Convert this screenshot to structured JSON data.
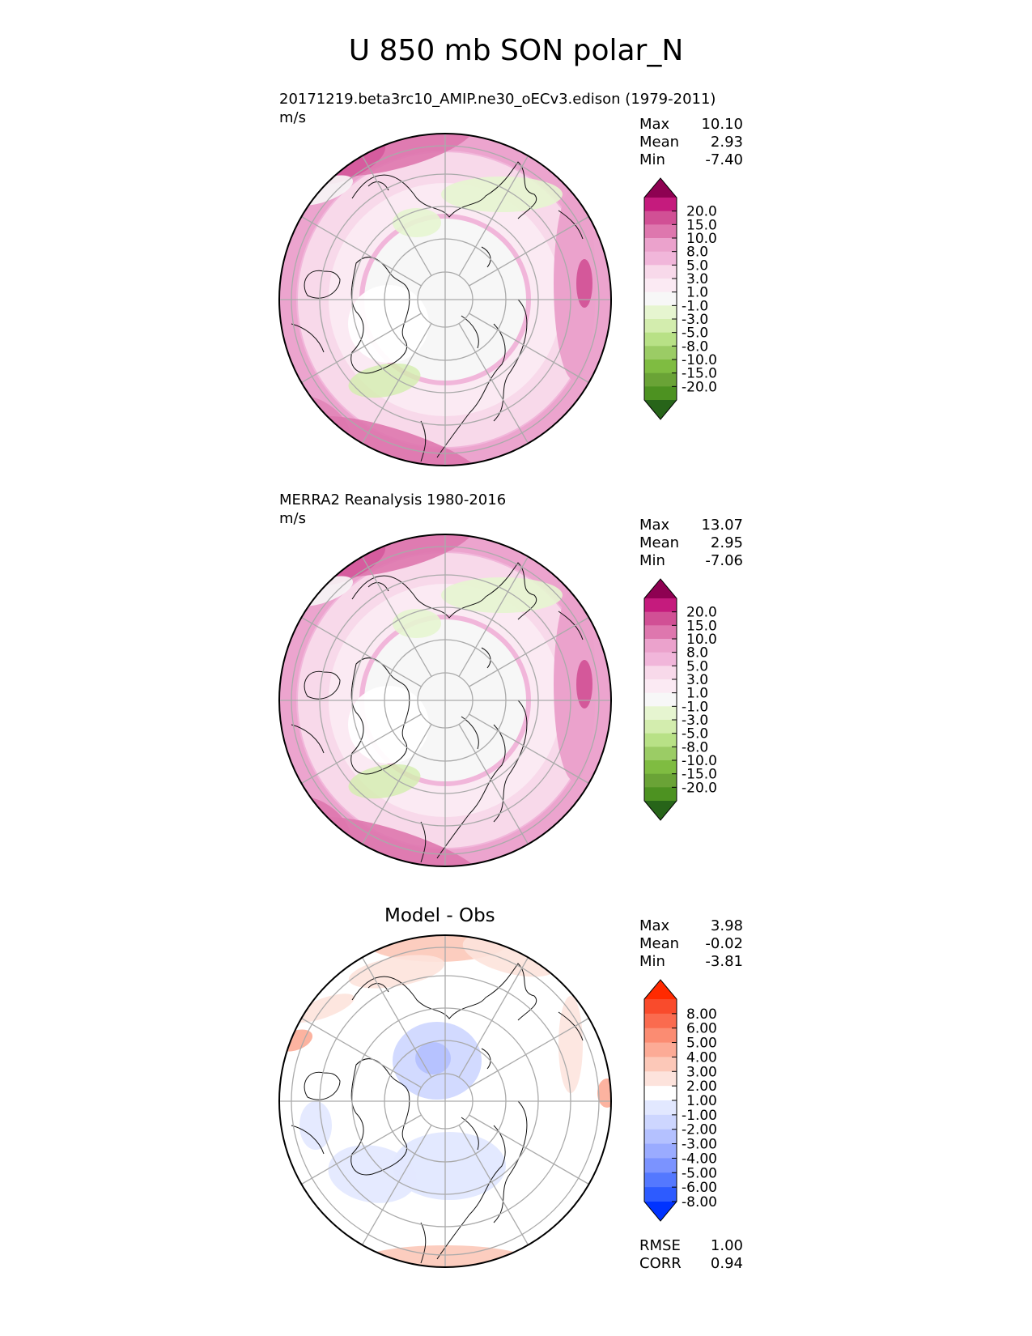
{
  "title": "U 850 mb SON polar_N",
  "colors": {
    "seq_levels": [
      "#276419",
      "#4d9221",
      "#6aa336",
      "#7fbc41",
      "#9bcc65",
      "#b8e186",
      "#d3edae",
      "#e6f5d0",
      "#f7f7f7",
      "#fbeaf3",
      "#f8d9ea",
      "#f1b6da",
      "#eba2cc",
      "#de77ae",
      "#d15095",
      "#c51b7d",
      "#8e0152"
    ],
    "diff_levels": [
      "#0033ff",
      "#2d5bff",
      "#5478ff",
      "#7b93ff",
      "#9aabff",
      "#b4c1ff",
      "#cdd6ff",
      "#e2e8ff",
      "#ffffff",
      "#fde3dc",
      "#fcc8b8",
      "#fcab96",
      "#fb8c72",
      "#fa6b4f",
      "#f94b2c",
      "#ff2a00"
    ],
    "land_outline": "#111111",
    "grid": "#aaaaaa"
  },
  "chart_data": [
    {
      "type": "heatmap",
      "projection": "north polar stereographic",
      "title": "20171219.beta3rc10_AMIP.ne30_oECv3.edison (1979-2011)",
      "units": "m/s",
      "stats": [
        {
          "label": "Max",
          "value": "10.10"
        },
        {
          "label": "Mean",
          "value": "2.93"
        },
        {
          "label": "Min",
          "value": "-7.40"
        }
      ],
      "colorbar_ticks": [
        "20.0",
        "15.0",
        "10.0",
        "8.0",
        "5.0",
        "3.0",
        "1.0",
        "-1.0",
        "-3.0",
        "-5.0",
        "-8.0",
        "-10.0",
        "-15.0",
        "-20.0"
      ],
      "colorbar_extend": "both",
      "grid": true
    },
    {
      "type": "heatmap",
      "projection": "north polar stereographic",
      "title": "MERRA2 Reanalysis 1980-2016",
      "units": "m/s",
      "stats": [
        {
          "label": "Max",
          "value": "13.07"
        },
        {
          "label": "Mean",
          "value": "2.95"
        },
        {
          "label": "Min",
          "value": "-7.06"
        }
      ],
      "colorbar_ticks": [
        "20.0",
        "15.0",
        "10.0",
        "8.0",
        "5.0",
        "3.0",
        "1.0",
        "-1.0",
        "-3.0",
        "-5.0",
        "-8.0",
        "-10.0",
        "-15.0",
        "-20.0"
      ],
      "colorbar_extend": "both",
      "grid": true
    },
    {
      "type": "heatmap",
      "projection": "north polar stereographic",
      "title": "Model - Obs",
      "stats": [
        {
          "label": "Max",
          "value": "3.98"
        },
        {
          "label": "Mean",
          "value": "-0.02"
        },
        {
          "label": "Min",
          "value": "-3.81"
        }
      ],
      "colorbar_ticks": [
        "8.00",
        "6.00",
        "5.00",
        "4.00",
        "3.00",
        "2.00",
        "1.00",
        "-1.00",
        "-2.00",
        "-3.00",
        "-4.00",
        "-5.00",
        "-6.00",
        "-8.00"
      ],
      "colorbar_extend": "both",
      "metrics": [
        {
          "label": "RMSE",
          "value": "1.00"
        },
        {
          "label": "CORR",
          "value": "0.94"
        }
      ],
      "grid": true
    }
  ]
}
